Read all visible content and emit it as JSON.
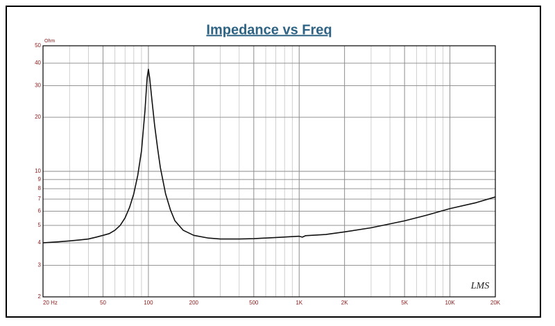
{
  "chart_data": {
    "type": "line",
    "title": "Impedance vs Freq",
    "ylabel": "Ohm",
    "annotation": "LMS",
    "log_x": true,
    "log_y": true,
    "grid": true,
    "minor_grid": true,
    "xlim": [
      20,
      20000
    ],
    "ylim": [
      2,
      50
    ],
    "xticks": [
      {
        "value": 20,
        "label": "20 Hz"
      },
      50,
      100,
      200,
      500,
      {
        "value": 1000,
        "label": "1K"
      },
      {
        "value": 2000,
        "label": "2K"
      },
      {
        "value": 5000,
        "label": "5K"
      },
      {
        "value": 10000,
        "label": "10K"
      },
      {
        "value": 20000,
        "label": "20K"
      }
    ],
    "yticks": [
      2,
      3,
      4,
      5,
      6,
      7,
      8,
      9,
      10,
      20,
      30,
      40,
      50
    ],
    "x": [
      20,
      25,
      30,
      35,
      40,
      45,
      50,
      55,
      60,
      65,
      70,
      75,
      80,
      85,
      90,
      95,
      98,
      100,
      102,
      105,
      110,
      115,
      120,
      130,
      140,
      150,
      170,
      200,
      250,
      300,
      400,
      500,
      700,
      1000,
      1050,
      1100,
      1500,
      2000,
      3000,
      5000,
      7000,
      10000,
      15000,
      20000
    ],
    "series": [
      {
        "color": "#111111",
        "values": [
          4.0,
          4.05,
          4.1,
          4.15,
          4.2,
          4.3,
          4.4,
          4.5,
          4.7,
          5.0,
          5.5,
          6.3,
          7.5,
          9.5,
          13,
          22,
          33,
          37,
          33,
          26,
          18,
          13.5,
          10.5,
          7.5,
          6.1,
          5.3,
          4.7,
          4.4,
          4.25,
          4.2,
          4.2,
          4.22,
          4.28,
          4.35,
          4.3,
          4.38,
          4.45,
          4.6,
          4.85,
          5.3,
          5.7,
          6.2,
          6.7,
          7.2
        ]
      }
    ]
  }
}
